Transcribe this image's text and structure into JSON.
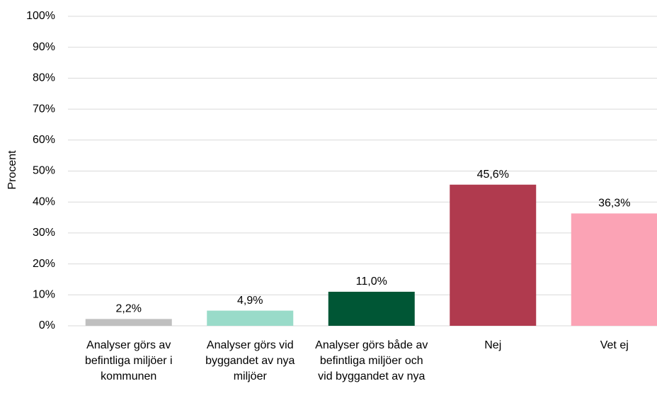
{
  "chart_data": {
    "type": "bar",
    "y_label": "Procent",
    "categories": [
      "Analyser görs av befintliga miljöer i kommunen",
      "Analyser görs vid byggandet av nya miljöer",
      "Analyser görs både av befintliga miljöer och vid byggandet av nya",
      "Nej",
      "Vet ej"
    ],
    "values": [
      2.2,
      4.9,
      11.0,
      45.6,
      36.3
    ],
    "value_labels": [
      "2,2%",
      "4,9%",
      "11,0%",
      "45,6%",
      "36,3%"
    ],
    "colors": [
      "#bfbfbf",
      "#99dbc9",
      "#005635",
      "#b03a4e",
      "#fba3b5"
    ],
    "ylim": [
      0,
      100
    ],
    "yticks": [
      {
        "value": 0,
        "label": "0%"
      },
      {
        "value": 10,
        "label": "10%"
      },
      {
        "value": 20,
        "label": "20%"
      },
      {
        "value": 30,
        "label": "30%"
      },
      {
        "value": 40,
        "label": "40%"
      },
      {
        "value": 50,
        "label": "50%"
      },
      {
        "value": 60,
        "label": "60%"
      },
      {
        "value": 70,
        "label": "70%"
      },
      {
        "value": 80,
        "label": "80%"
      },
      {
        "value": 90,
        "label": "90%"
      },
      {
        "value": 100,
        "label": "100%"
      }
    ],
    "grid": true
  }
}
